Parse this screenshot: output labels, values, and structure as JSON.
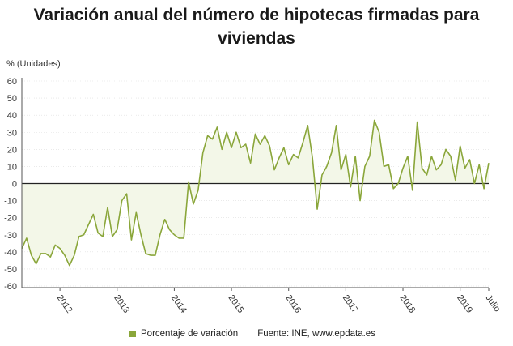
{
  "title": "Variación anual del número de hipotecas firmadas para viviendas",
  "unit_label": "% (Unidades)",
  "legend_label": "Porcentaje de variación",
  "source": "Fuente: INE, www.epdata.es",
  "colors": {
    "series": "#8aa63a",
    "fill": "#f3f7e8",
    "zero_line": "#222222",
    "grid": "#dddddd"
  },
  "chart_data": {
    "type": "line",
    "title": "Variación anual del número de hipotecas firmadas para viviendas",
    "ylabel": "% (Unidades)",
    "ylim": [
      -60,
      60
    ],
    "yticks": [
      60,
      50,
      40,
      30,
      20,
      10,
      0,
      -10,
      -20,
      -30,
      -40,
      -50,
      -60
    ],
    "xticks": [
      "2012",
      "2013",
      "2014",
      "2015",
      "2016",
      "2017",
      "2018",
      "2019",
      "Julio"
    ],
    "x_start": "2011-05",
    "x_end": "2019-07",
    "legend_position": "bottom",
    "series": [
      {
        "name": "Porcentaje de variación",
        "values": [
          -38,
          -32,
          -42,
          -47,
          -41,
          -41,
          -43,
          -36,
          -38,
          -42,
          -48,
          -42,
          -31,
          -30,
          -24,
          -18,
          -29,
          -31,
          -14,
          -31,
          -27,
          -10,
          -6,
          -33,
          -17,
          -30,
          -41,
          -42,
          -42,
          -30,
          -21,
          -27,
          -30,
          -32,
          -32,
          1,
          -12,
          -4,
          18,
          28,
          26,
          33,
          20,
          30,
          21,
          30,
          21,
          23,
          12,
          29,
          23,
          28,
          22,
          8,
          15,
          21,
          11,
          17,
          15,
          24,
          34,
          15,
          -15,
          5,
          10,
          18,
          34,
          8,
          17,
          -2,
          16,
          -10,
          10,
          16,
          37,
          30,
          10,
          11,
          -3,
          0,
          9,
          16,
          -4,
          36,
          9,
          5,
          16,
          8,
          11,
          20,
          16,
          2,
          22,
          9,
          14,
          0,
          11,
          -3,
          12
        ]
      }
    ]
  }
}
